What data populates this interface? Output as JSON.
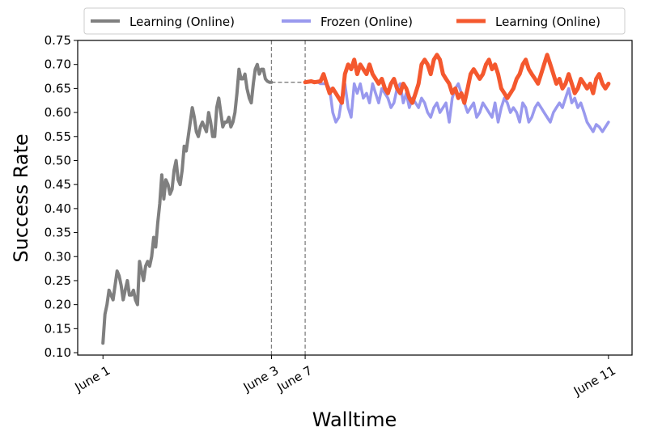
{
  "chart_data": {
    "type": "line",
    "title": "",
    "xlabel": "Walltime",
    "ylabel": "Success Rate",
    "x_ticks": [
      "June 1",
      "June 3",
      "June 7",
      "June 11"
    ],
    "x_tick_positions": [
      0,
      1,
      1.2,
      3
    ],
    "xlim": [
      -0.15,
      3.14
    ],
    "ylim": [
      0.095,
      0.75
    ],
    "y_ticks": [
      0.1,
      0.15,
      0.2,
      0.25,
      0.3,
      0.35,
      0.4,
      0.45,
      0.5,
      0.55,
      0.6,
      0.65,
      0.7,
      0.75
    ],
    "grid": false,
    "legend_position": "top",
    "vlines": [
      1,
      1.2
    ],
    "connector": {
      "x": [
        1,
        1.2
      ],
      "y": [
        0.663,
        0.663
      ]
    },
    "series": [
      {
        "name": "Learning (Online)",
        "color": "#7f7f7f",
        "x": [
          0.0,
          0.012,
          0.024,
          0.036,
          0.048,
          0.06,
          0.072,
          0.084,
          0.096,
          0.108,
          0.12,
          0.132,
          0.145,
          0.157,
          0.169,
          0.181,
          0.193,
          0.205,
          0.217,
          0.229,
          0.241,
          0.253,
          0.265,
          0.277,
          0.289,
          0.301,
          0.313,
          0.325,
          0.337,
          0.349,
          0.361,
          0.373,
          0.386,
          0.398,
          0.41,
          0.422,
          0.434,
          0.446,
          0.458,
          0.47,
          0.482,
          0.494,
          0.506,
          0.518,
          0.53,
          0.542,
          0.554,
          0.566,
          0.578,
          0.59,
          0.602,
          0.614,
          0.627,
          0.639,
          0.651,
          0.663,
          0.675,
          0.687,
          0.699,
          0.711,
          0.723,
          0.735,
          0.747,
          0.759,
          0.771,
          0.783,
          0.795,
          0.807,
          0.819,
          0.831,
          0.843,
          0.855,
          0.868,
          0.88,
          0.892,
          0.904,
          0.916,
          0.928,
          0.94,
          0.952,
          0.964,
          0.976,
          0.988,
          1.0
        ],
        "y": [
          0.12,
          0.18,
          0.2,
          0.23,
          0.22,
          0.21,
          0.24,
          0.27,
          0.26,
          0.24,
          0.21,
          0.23,
          0.25,
          0.22,
          0.22,
          0.23,
          0.21,
          0.2,
          0.29,
          0.27,
          0.25,
          0.28,
          0.29,
          0.28,
          0.3,
          0.34,
          0.32,
          0.37,
          0.41,
          0.47,
          0.42,
          0.46,
          0.45,
          0.43,
          0.44,
          0.48,
          0.5,
          0.46,
          0.45,
          0.48,
          0.53,
          0.52,
          0.55,
          0.58,
          0.61,
          0.59,
          0.56,
          0.55,
          0.57,
          0.58,
          0.57,
          0.56,
          0.6,
          0.58,
          0.55,
          0.55,
          0.61,
          0.63,
          0.6,
          0.57,
          0.58,
          0.58,
          0.59,
          0.57,
          0.58,
          0.6,
          0.64,
          0.69,
          0.67,
          0.67,
          0.68,
          0.65,
          0.63,
          0.62,
          0.66,
          0.69,
          0.7,
          0.68,
          0.69,
          0.69,
          0.67,
          0.665,
          0.663,
          0.663
        ]
      },
      {
        "name": "Frozen (Online)",
        "color": "#9999ee",
        "x": [
          1.2,
          1.218,
          1.236,
          1.255,
          1.273,
          1.291,
          1.309,
          1.327,
          1.345,
          1.364,
          1.382,
          1.4,
          1.418,
          1.436,
          1.455,
          1.473,
          1.491,
          1.509,
          1.527,
          1.545,
          1.564,
          1.582,
          1.6,
          1.618,
          1.636,
          1.655,
          1.673,
          1.691,
          1.709,
          1.727,
          1.745,
          1.764,
          1.782,
          1.8,
          1.818,
          1.836,
          1.855,
          1.873,
          1.891,
          1.909,
          1.927,
          1.945,
          1.964,
          1.982,
          2.0,
          2.018,
          2.036,
          2.055,
          2.073,
          2.091,
          2.109,
          2.127,
          2.145,
          2.164,
          2.182,
          2.2,
          2.218,
          2.236,
          2.255,
          2.273,
          2.291,
          2.309,
          2.327,
          2.345,
          2.364,
          2.382,
          2.4,
          2.418,
          2.436,
          2.455,
          2.473,
          2.491,
          2.509,
          2.527,
          2.545,
          2.564,
          2.582,
          2.6,
          2.618,
          2.636,
          2.655,
          2.673,
          2.691,
          2.709,
          2.727,
          2.745,
          2.764,
          2.782,
          2.8,
          2.818,
          2.836,
          2.855,
          2.873,
          2.891,
          2.909,
          2.927,
          2.945,
          2.964,
          2.982,
          3.0
        ],
        "y": [
          0.663,
          0.664,
          0.665,
          0.663,
          0.664,
          0.66,
          0.66,
          0.66,
          0.65,
          0.6,
          0.58,
          0.59,
          0.63,
          0.66,
          0.61,
          0.59,
          0.66,
          0.64,
          0.66,
          0.63,
          0.64,
          0.62,
          0.66,
          0.64,
          0.62,
          0.65,
          0.64,
          0.63,
          0.61,
          0.62,
          0.65,
          0.66,
          0.62,
          0.64,
          0.61,
          0.63,
          0.62,
          0.61,
          0.63,
          0.62,
          0.6,
          0.59,
          0.61,
          0.62,
          0.6,
          0.61,
          0.62,
          0.58,
          0.63,
          0.65,
          0.66,
          0.64,
          0.62,
          0.6,
          0.61,
          0.62,
          0.59,
          0.6,
          0.62,
          0.61,
          0.6,
          0.59,
          0.62,
          0.58,
          0.61,
          0.63,
          0.62,
          0.6,
          0.61,
          0.6,
          0.58,
          0.62,
          0.61,
          0.58,
          0.59,
          0.61,
          0.62,
          0.61,
          0.6,
          0.59,
          0.58,
          0.6,
          0.61,
          0.62,
          0.61,
          0.63,
          0.65,
          0.62,
          0.63,
          0.61,
          0.62,
          0.6,
          0.58,
          0.57,
          0.56,
          0.575,
          0.57,
          0.56,
          0.57,
          0.58
        ]
      },
      {
        "name": "Learning (Online)",
        "color": "#f4582e",
        "x": [
          1.2,
          1.218,
          1.236,
          1.255,
          1.273,
          1.291,
          1.309,
          1.327,
          1.345,
          1.364,
          1.382,
          1.4,
          1.418,
          1.436,
          1.455,
          1.473,
          1.491,
          1.509,
          1.527,
          1.545,
          1.564,
          1.582,
          1.6,
          1.618,
          1.636,
          1.655,
          1.673,
          1.691,
          1.709,
          1.727,
          1.745,
          1.764,
          1.782,
          1.8,
          1.818,
          1.836,
          1.855,
          1.873,
          1.891,
          1.909,
          1.927,
          1.945,
          1.964,
          1.982,
          2.0,
          2.018,
          2.036,
          2.055,
          2.073,
          2.091,
          2.109,
          2.127,
          2.145,
          2.164,
          2.182,
          2.2,
          2.218,
          2.236,
          2.255,
          2.273,
          2.291,
          2.309,
          2.327,
          2.345,
          2.364,
          2.382,
          2.4,
          2.418,
          2.436,
          2.455,
          2.473,
          2.491,
          2.509,
          2.527,
          2.545,
          2.564,
          2.582,
          2.6,
          2.618,
          2.636,
          2.655,
          2.673,
          2.691,
          2.709,
          2.727,
          2.745,
          2.764,
          2.782,
          2.8,
          2.818,
          2.836,
          2.855,
          2.873,
          2.891,
          2.909,
          2.927,
          2.945,
          2.964,
          2.982,
          3.0
        ],
        "y": [
          0.663,
          0.664,
          0.665,
          0.663,
          0.664,
          0.665,
          0.68,
          0.66,
          0.64,
          0.65,
          0.64,
          0.63,
          0.62,
          0.68,
          0.7,
          0.69,
          0.71,
          0.68,
          0.7,
          0.69,
          0.68,
          0.7,
          0.68,
          0.67,
          0.66,
          0.67,
          0.65,
          0.64,
          0.66,
          0.67,
          0.65,
          0.64,
          0.66,
          0.65,
          0.63,
          0.62,
          0.64,
          0.66,
          0.7,
          0.71,
          0.7,
          0.68,
          0.71,
          0.72,
          0.71,
          0.68,
          0.67,
          0.66,
          0.64,
          0.65,
          0.63,
          0.64,
          0.62,
          0.65,
          0.68,
          0.69,
          0.68,
          0.67,
          0.68,
          0.7,
          0.71,
          0.69,
          0.7,
          0.68,
          0.65,
          0.64,
          0.63,
          0.64,
          0.65,
          0.67,
          0.68,
          0.7,
          0.71,
          0.69,
          0.68,
          0.67,
          0.66,
          0.68,
          0.7,
          0.72,
          0.7,
          0.68,
          0.66,
          0.67,
          0.65,
          0.66,
          0.68,
          0.66,
          0.64,
          0.65,
          0.67,
          0.66,
          0.65,
          0.66,
          0.64,
          0.67,
          0.68,
          0.66,
          0.65,
          0.66
        ]
      }
    ]
  }
}
